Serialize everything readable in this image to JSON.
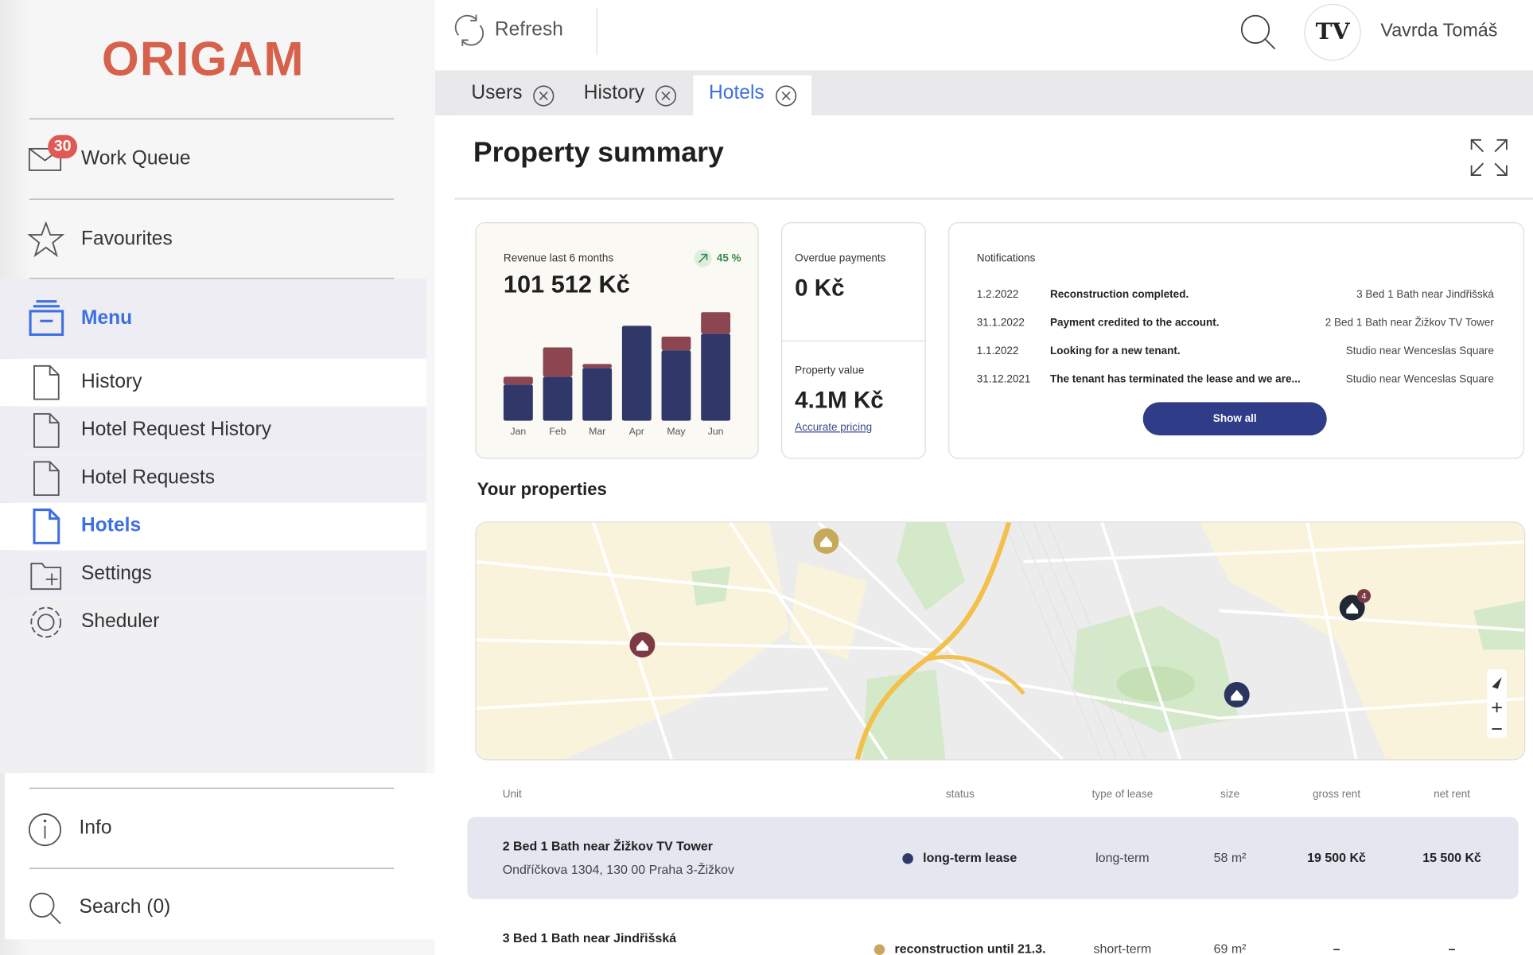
{
  "header": {
    "refresh": "Refresh",
    "avatar": "TV",
    "user": "Vavrda Tomáš"
  },
  "sidebar": {
    "logo": "ORIGAM",
    "work_queue": {
      "label": "Work Queue",
      "badge": 30
    },
    "favourites": "Favourites",
    "menu": "Menu",
    "items": [
      "History",
      "Hotel Request History",
      "Hotel Requests",
      "Hotels",
      "Settings",
      "Sheduler"
    ],
    "info": "Info",
    "search": "Search (0)"
  },
  "tabs": [
    "Users",
    "History",
    "Hotels"
  ],
  "page_title": "Property summary",
  "revenue": {
    "label": "Revenue last 6 months",
    "change": "45 %",
    "amount": "101 512 Kč"
  },
  "chart_data": {
    "type": "bar",
    "stacked": true,
    "categories": [
      "Jan",
      "Feb",
      "Mar",
      "Apr",
      "May",
      "Jun"
    ],
    "series": [
      {
        "color": "#2f3868",
        "values": [
          37,
          45,
          54,
          97,
          72,
          89
        ]
      },
      {
        "color": "#8b4651",
        "values": [
          8,
          30,
          4,
          0,
          14,
          22
        ]
      }
    ],
    "ylim": [
      0,
      115
    ]
  },
  "overdue": {
    "label": "Overdue payments",
    "amount": "0 Kč"
  },
  "property_value": {
    "label": "Property value",
    "amount": "4.1M Kč",
    "link": "Accurate pricing"
  },
  "notifications": {
    "title": "Notifications",
    "button": "Show all",
    "rows": [
      [
        "1.2.2022",
        "Reconstruction completed.",
        "3 Bed 1 Bath near Jindřišská"
      ],
      [
        "31.1.2022",
        "Payment credited to the account.",
        "2 Bed 1 Bath near Žižkov TV Tower"
      ],
      [
        "1.1.2022",
        "Looking for a new tenant.",
        "Studio near Wenceslas Square"
      ],
      [
        "31.12.2021",
        "The tenant has terminated the lease and we are...",
        "Studio near Wenceslas Square"
      ]
    ]
  },
  "properties": {
    "title": "Your properties",
    "map_badge": 4,
    "columns": [
      "Unit",
      "status",
      "type of lease",
      "size",
      "gross rent",
      "net rent"
    ],
    "rows": [
      {
        "name": "2 Bed 1 Bath near Žižkov TV Tower",
        "address": "Ondříčkova 1304, 130 00 Praha 3-Žižkov",
        "status": "long-term lease",
        "lease": "long-term",
        "size": "58 m²",
        "gross": "19 500 Kč",
        "net": "15 500 Kč"
      },
      {
        "name": "3 Bed 1 Bath near Jindřišská",
        "status": "reconstruction until 21.3.",
        "lease": "short-term",
        "size": "69 m²",
        "gross": "–",
        "net": "–"
      }
    ]
  }
}
